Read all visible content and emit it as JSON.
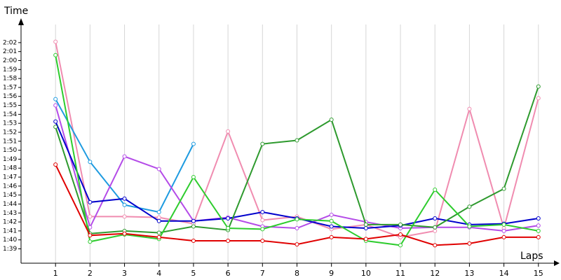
{
  "chart_data": {
    "type": "line",
    "y_label": "Time",
    "x_label": "Laps",
    "x": [
      1,
      2,
      3,
      4,
      5,
      6,
      7,
      8,
      9,
      10,
      11,
      12,
      13,
      14,
      15
    ],
    "xlim": [
      0,
      15.35
    ],
    "xticks": [
      1,
      2,
      3,
      4,
      5,
      6,
      7,
      8,
      9,
      10,
      11,
      12,
      13,
      14,
      15
    ],
    "ylim": [
      97.4,
      124.8
    ],
    "yticks": [
      {
        "value": 99,
        "label": "1:39"
      },
      {
        "value": 100,
        "label": "1:40"
      },
      {
        "value": 101,
        "label": "1:41"
      },
      {
        "value": 102,
        "label": "1:42"
      },
      {
        "value": 103,
        "label": "1:43"
      },
      {
        "value": 104,
        "label": "1:44"
      },
      {
        "value": 105,
        "label": "1:45"
      },
      {
        "value": 106,
        "label": "1:46"
      },
      {
        "value": 107,
        "label": "1:47"
      },
      {
        "value": 108,
        "label": "1:48"
      },
      {
        "value": 109,
        "label": "1:49"
      },
      {
        "value": 110,
        "label": "1:50"
      },
      {
        "value": 111,
        "label": "1:51"
      },
      {
        "value": 112,
        "label": "1:52"
      },
      {
        "value": 113,
        "label": "1:53"
      },
      {
        "value": 114,
        "label": "1:54"
      },
      {
        "value": 115,
        "label": "1:55"
      },
      {
        "value": 116,
        "label": "1:56"
      },
      {
        "value": 117,
        "label": "1:57"
      },
      {
        "value": 118,
        "label": "1:58"
      },
      {
        "value": 119,
        "label": "1:59"
      },
      {
        "value": 120,
        "label": "2:00"
      },
      {
        "value": 121,
        "label": "2:01"
      },
      {
        "value": 122,
        "label": "2:02"
      }
    ],
    "grid": "x",
    "series": [
      {
        "color": "#f08cb0",
        "values": [
          122.1,
          102.6,
          102.6,
          102.5,
          101.8,
          112.1,
          102.2,
          102.6,
          101.2,
          101.7,
          100.3,
          101.0,
          114.6,
          101.3,
          115.8
        ]
      },
      {
        "color": "#1e9be0",
        "values": [
          115.7,
          108.7,
          103.9,
          103.1,
          110.7,
          null,
          null,
          null,
          null,
          null,
          null,
          null,
          null,
          null,
          null
        ]
      },
      {
        "color": "#b44be8",
        "values": [
          115.0,
          101.4,
          109.3,
          107.9,
          102.1,
          102.5,
          101.5,
          101.3,
          102.8,
          102.0,
          101.3,
          101.4,
          101.4,
          101.0,
          101.6
        ]
      },
      {
        "color": "#0000cc",
        "values": [
          113.2,
          104.2,
          104.6,
          102.1,
          102.1,
          102.4,
          103.1,
          102.4,
          101.5,
          101.3,
          101.6,
          102.4,
          101.7,
          101.8,
          102.4
        ]
      },
      {
        "color": "#2e9a2e",
        "values": [
          112.6,
          100.7,
          101.0,
          100.8,
          101.5,
          101.1,
          110.7,
          111.1,
          113.4,
          101.7,
          101.7,
          101.4,
          103.7,
          105.7,
          117.1
        ]
      },
      {
        "color": "#2ecc2e",
        "values": [
          120.6,
          99.8,
          100.6,
          100.1,
          107.0,
          101.3,
          101.2,
          102.3,
          102.1,
          99.9,
          99.4,
          105.6,
          101.5,
          101.7,
          101.0
        ]
      },
      {
        "color": "#e00000",
        "values": [
          108.4,
          100.5,
          100.7,
          100.3,
          99.9,
          99.9,
          99.9,
          99.5,
          100.3,
          100.1,
          100.6,
          99.4,
          99.6,
          100.3,
          100.3
        ]
      }
    ]
  }
}
